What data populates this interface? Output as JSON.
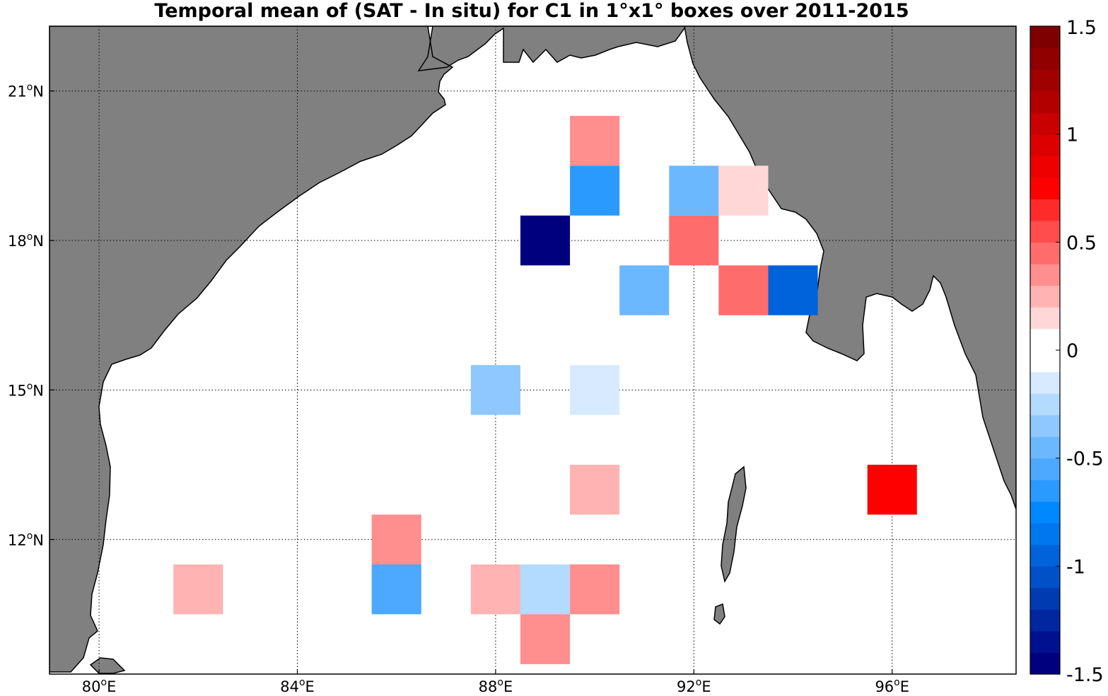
{
  "chart_data": {
    "type": "heatmap",
    "title": "Temporal mean of (SAT - In situ) for C1 in 1°x1° boxes over 2011-2015",
    "xlabel": "",
    "ylabel": "",
    "xlim": [
      79,
      98.5
    ],
    "ylim": [
      9.3,
      22.3
    ],
    "grid": true,
    "x_ticks": [
      {
        "value": 80,
        "deg": "80",
        "sup": "o",
        "hemi": "E"
      },
      {
        "value": 84,
        "deg": "84",
        "sup": "o",
        "hemi": "E"
      },
      {
        "value": 88,
        "deg": "88",
        "sup": "o",
        "hemi": "E"
      },
      {
        "value": 92,
        "deg": "92",
        "sup": "o",
        "hemi": "E"
      },
      {
        "value": 96,
        "deg": "96",
        "sup": "o",
        "hemi": "E"
      }
    ],
    "y_ticks": [
      {
        "value": 12,
        "deg": "12",
        "sup": "o",
        "hemi": "N"
      },
      {
        "value": 15,
        "deg": "15",
        "sup": "o",
        "hemi": "N"
      },
      {
        "value": 18,
        "deg": "18",
        "sup": "o",
        "hemi": "N"
      },
      {
        "value": 21,
        "deg": "21",
        "sup": "o",
        "hemi": "N"
      }
    ],
    "colorbar": {
      "range": [
        -1.5,
        1.5
      ],
      "ticks": [
        {
          "value": 1.5,
          "label": "1.5"
        },
        {
          "value": 1,
          "label": "1"
        },
        {
          "value": 0.5,
          "label": "0.5"
        },
        {
          "value": 0,
          "label": "0"
        },
        {
          "value": -0.5,
          "label": "-0.5"
        },
        {
          "value": -1,
          "label": "-1"
        },
        {
          "value": -1.5,
          "label": "-1.5"
        }
      ],
      "colors": [
        "#00007f",
        "#001190",
        "#0026a0",
        "#003bb2",
        "#0050c8",
        "#0063dc",
        "#0077ee",
        "#0089ff",
        "#2b9aff",
        "#4ca9ff",
        "#6cb8ff",
        "#8ec8ff",
        "#b3daff",
        "#d7eaff",
        "#ffffff",
        "#ffffff",
        "#ffd7d7",
        "#ffb3b3",
        "#ff8e8e",
        "#ff6c6c",
        "#ff4c4c",
        "#ff2b2b",
        "#ff0000",
        "#ee0000",
        "#dc0000",
        "#c80000",
        "#b20000",
        "#a00000",
        "#900000",
        "#7f0000"
      ]
    },
    "cells": [
      {
        "lon": 90,
        "lat": 20,
        "value": 0.35
      },
      {
        "lon": 90,
        "lat": 19,
        "value": -0.65
      },
      {
        "lon": 92,
        "lat": 19,
        "value": -0.45
      },
      {
        "lon": 93,
        "lat": 19,
        "value": 0.15
      },
      {
        "lon": 89,
        "lat": 18,
        "value": -1.45
      },
      {
        "lon": 92,
        "lat": 18,
        "value": 0.45
      },
      {
        "lon": 91,
        "lat": 17,
        "value": -0.45
      },
      {
        "lon": 93,
        "lat": 17,
        "value": 0.45
      },
      {
        "lon": 94,
        "lat": 17,
        "value": -0.95
      },
      {
        "lon": 88,
        "lat": 15,
        "value": -0.35
      },
      {
        "lon": 90,
        "lat": 15,
        "value": -0.15
      },
      {
        "lon": 90,
        "lat": 13,
        "value": 0.25
      },
      {
        "lon": 96,
        "lat": 13,
        "value": 0.75
      },
      {
        "lon": 86,
        "lat": 12,
        "value": 0.35
      },
      {
        "lon": 82,
        "lat": 11,
        "value": 0.25
      },
      {
        "lon": 86,
        "lat": 11,
        "value": -0.55
      },
      {
        "lon": 88,
        "lat": 11,
        "value": 0.25
      },
      {
        "lon": 89,
        "lat": 11,
        "value": -0.25
      },
      {
        "lon": 90,
        "lat": 11,
        "value": 0.35
      },
      {
        "lon": 89,
        "lat": 10,
        "value": 0.35
      }
    ]
  },
  "colors": {
    "land": "#808080",
    "coast": "#000000",
    "ocean": "#ffffff",
    "grid": "#000000"
  }
}
